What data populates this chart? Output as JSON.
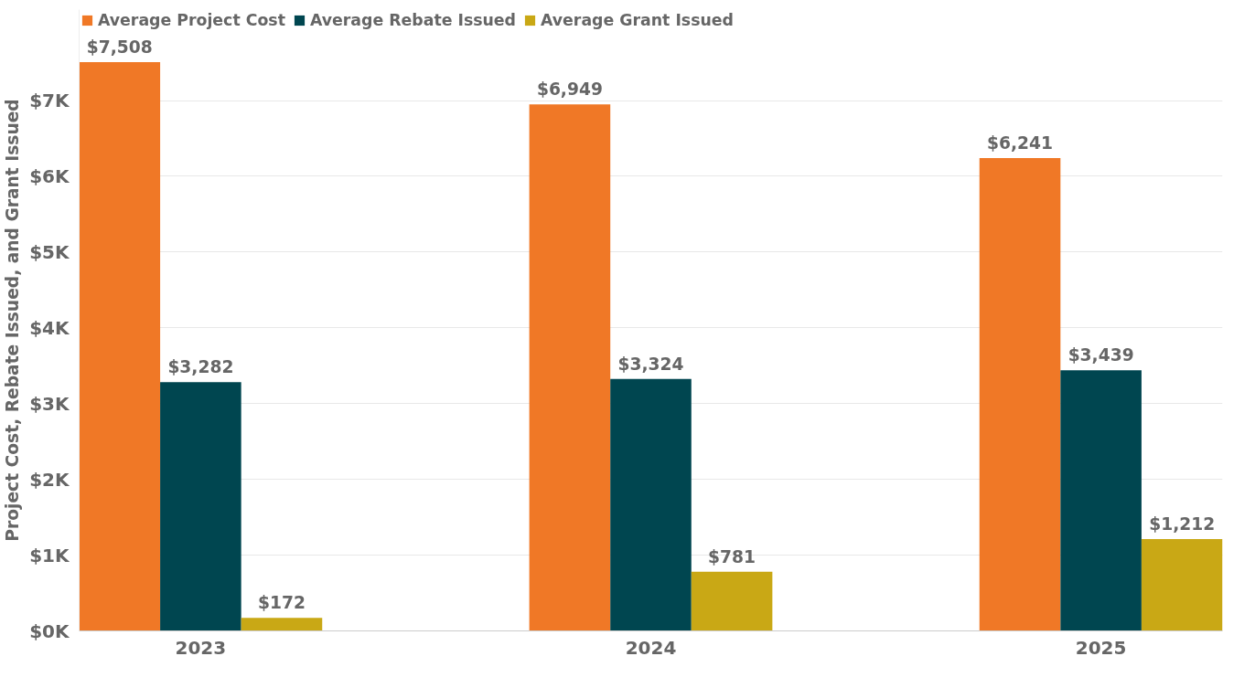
{
  "chart_data": {
    "type": "bar",
    "ylabel": "Project Cost, Rebate Issued, and Grant Issued",
    "categories": [
      "2023",
      "2024",
      "2025"
    ],
    "series": [
      {
        "name": "Average Project Cost",
        "color": "#f07826",
        "values": [
          7508,
          6949,
          6241
        ],
        "value_labels": [
          "$7,508",
          "$6,949",
          "$6,241"
        ]
      },
      {
        "name": "Average Rebate Issued",
        "color": "#004650",
        "values": [
          3282,
          3324,
          3439
        ],
        "value_labels": [
          "$3,282",
          "$3,324",
          "$3,439"
        ]
      },
      {
        "name": "Average Grant Issued",
        "color": "#c9a815",
        "values": [
          172,
          781,
          1212
        ],
        "value_labels": [
          "$172",
          "$781",
          "$1,212"
        ]
      }
    ],
    "ylim": [
      0,
      8200
    ],
    "yticks": [
      {
        "value": 0,
        "label": "$0K"
      },
      {
        "value": 1000,
        "label": "$1K"
      },
      {
        "value": 2000,
        "label": "$2K"
      },
      {
        "value": 3000,
        "label": "$3K"
      },
      {
        "value": 4000,
        "label": "$4K"
      },
      {
        "value": 5000,
        "label": "$5K"
      },
      {
        "value": 6000,
        "label": "$6K"
      },
      {
        "value": 7000,
        "label": "$7K"
      }
    ],
    "grid": "y",
    "legend": "top left"
  }
}
